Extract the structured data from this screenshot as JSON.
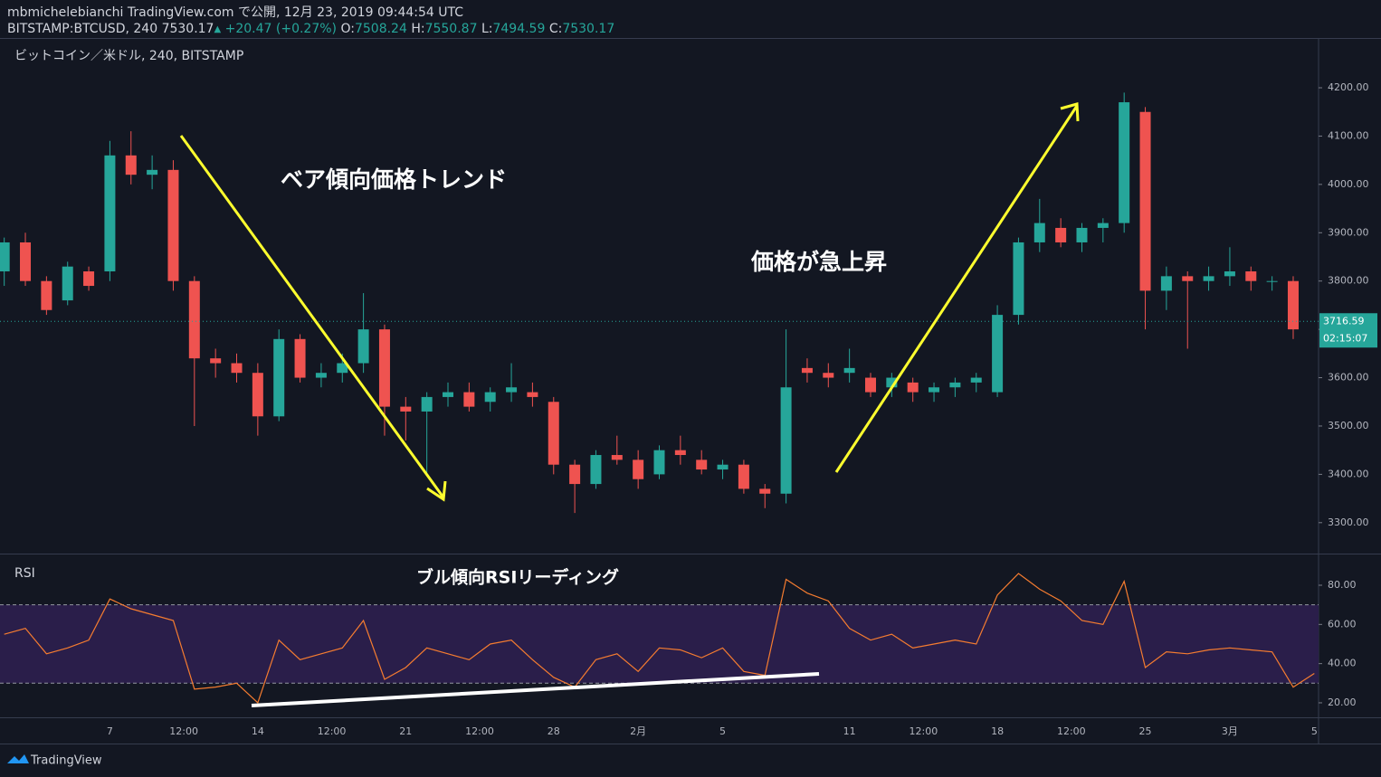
{
  "header": {
    "line1": "mbmichelebianchi TradingView.com で公開, 12月 23, 2019 09:44:54 UTC",
    "symbol": "BITSTAMP:BTCUSD, 240",
    "last": "7530.17",
    "arrow": "▲",
    "change": "+20.47 (+0.27%)",
    "ohlc": [
      {
        "label": "O:",
        "value": "7508.24"
      },
      {
        "label": "H:",
        "value": "7550.87"
      },
      {
        "label": "L:",
        "value": "7494.59"
      },
      {
        "label": "C:",
        "value": "7530.17"
      }
    ]
  },
  "annotations": {
    "bear": "ベア傾向価格トレンド",
    "surge": "価格が急上昇",
    "bull_rsi": "ブル傾向RSIリーディング"
  },
  "brand": "TradingView",
  "chart_data": [
    {
      "type": "candlestick",
      "title": "ビットコイン／米ドル, 240, BITSTAMP",
      "up_color": "#26a69a",
      "down_color": "#ef5350",
      "x": [
        -5,
        -4,
        -3,
        -2,
        -1,
        0,
        1,
        2,
        3,
        4,
        5,
        6,
        7,
        8,
        9,
        10,
        11,
        12,
        13,
        14,
        15,
        16,
        17,
        18,
        19,
        20,
        21,
        22,
        23,
        24,
        25,
        26,
        27,
        28,
        29,
        30,
        31,
        32,
        33,
        34,
        35,
        36,
        37,
        38,
        39,
        40,
        41,
        42,
        43,
        44,
        45,
        46,
        47,
        48,
        49,
        50,
        51,
        52,
        53,
        54,
        55,
        56
      ],
      "open": [
        3820,
        3880,
        3800,
        3760,
        3820,
        3820,
        4060,
        4020,
        4030,
        3800,
        3640,
        3630,
        3610,
        3520,
        3680,
        3600,
        3610,
        3630,
        3700,
        3540,
        3530,
        3560,
        3570,
        3550,
        3570,
        3570,
        3550,
        3420,
        3380,
        3440,
        3430,
        3400,
        3450,
        3430,
        3410,
        3420,
        3370,
        3360,
        3620,
        3610,
        3610,
        3600,
        3580,
        3590,
        3570,
        3580,
        3590,
        3570,
        3730,
        3880,
        3910,
        3880,
        3910,
        3920,
        4150,
        3780,
        3810,
        3800,
        3810,
        3820,
        3800,
        3800
      ],
      "high": [
        3890,
        3900,
        3810,
        3840,
        3830,
        4090,
        4110,
        4060,
        4050,
        3810,
        3660,
        3650,
        3630,
        3700,
        3690,
        3630,
        3650,
        3775,
        3710,
        3560,
        3570,
        3590,
        3590,
        3580,
        3630,
        3590,
        3560,
        3430,
        3450,
        3480,
        3450,
        3460,
        3480,
        3450,
        3430,
        3430,
        3380,
        3700,
        3640,
        3630,
        3660,
        3610,
        3610,
        3600,
        3590,
        3600,
        3610,
        3750,
        3890,
        3970,
        3930,
        3920,
        3930,
        4190,
        4160,
        3830,
        3820,
        3830,
        3870,
        3830,
        3810,
        3810
      ],
      "low": [
        3790,
        3790,
        3730,
        3750,
        3780,
        3800,
        4000,
        3990,
        3780,
        3500,
        3600,
        3590,
        3480,
        3510,
        3590,
        3580,
        3590,
        3610,
        3480,
        3470,
        3400,
        3540,
        3530,
        3530,
        3550,
        3540,
        3400,
        3320,
        3370,
        3420,
        3370,
        3390,
        3420,
        3400,
        3390,
        3360,
        3330,
        3340,
        3590,
        3580,
        3590,
        3560,
        3560,
        3550,
        3550,
        3560,
        3570,
        3560,
        3710,
        3860,
        3870,
        3860,
        3880,
        3900,
        3700,
        3740,
        3660,
        3780,
        3790,
        3780,
        3780,
        3680
      ],
      "close": [
        3880,
        3800,
        3740,
        3830,
        3790,
        4060,
        4020,
        4030,
        3800,
        3640,
        3630,
        3610,
        3520,
        3680,
        3600,
        3610,
        3630,
        3700,
        3540,
        3530,
        3560,
        3570,
        3540,
        3570,
        3580,
        3560,
        3420,
        3380,
        3440,
        3430,
        3390,
        3450,
        3440,
        3410,
        3420,
        3370,
        3360,
        3580,
        3610,
        3600,
        3620,
        3570,
        3600,
        3570,
        3580,
        3590,
        3600,
        3730,
        3880,
        3920,
        3880,
        3910,
        3920,
        4170,
        3780,
        3810,
        3800,
        3810,
        3820,
        3800,
        3800,
        3700
      ],
      "last_price": 3716.59,
      "countdown": "02:15:07",
      "xlim": [
        -5.2,
        57.2
      ],
      "ylim": [
        3236,
        4303
      ],
      "yticks": [
        {
          "value": 3300,
          "label": "3300.00"
        },
        {
          "value": 3400,
          "label": "3400.00"
        },
        {
          "value": 3500,
          "label": "3500.00"
        },
        {
          "value": 3600,
          "label": "3600.00"
        },
        {
          "value": 3700,
          "label": "3700.00"
        },
        {
          "value": 3800,
          "label": "3800.00"
        },
        {
          "value": 3900,
          "label": "3900.00"
        },
        {
          "value": 4000,
          "label": "4000.00"
        },
        {
          "value": 4100,
          "label": "4100.00"
        },
        {
          "value": 4200,
          "label": "4200.00"
        }
      ],
      "xticks": [
        {
          "value": 0,
          "label": "7"
        },
        {
          "value": 3.5,
          "label": "12:00"
        },
        {
          "value": 7,
          "label": "14"
        },
        {
          "value": 10.5,
          "label": "12:00"
        },
        {
          "value": 14,
          "label": "21"
        },
        {
          "value": 17.5,
          "label": "12:00"
        },
        {
          "value": 21,
          "label": "28"
        },
        {
          "value": 25,
          "label": "2月"
        },
        {
          "value": 29,
          "label": "5"
        },
        {
          "value": 35,
          "label": "11"
        },
        {
          "value": 38.5,
          "label": "12:00"
        },
        {
          "value": 42,
          "label": "18"
        },
        {
          "value": 45.5,
          "label": "12:00"
        },
        {
          "value": 49,
          "label": "25"
        },
        {
          "value": 53,
          "label": "3月"
        },
        {
          "value": 57,
          "label": "5"
        }
      ]
    },
    {
      "type": "line",
      "title": "RSI",
      "color": "#f57c30",
      "band": [
        30,
        70
      ],
      "band_color": "#2a1e4a",
      "x": [
        -5,
        -4,
        -3,
        -2,
        -1,
        0,
        1,
        2,
        3,
        4,
        5,
        6,
        7,
        8,
        9,
        10,
        11,
        12,
        13,
        14,
        15,
        16,
        17,
        18,
        19,
        20,
        21,
        22,
        23,
        24,
        25,
        26,
        27,
        28,
        29,
        30,
        31,
        32,
        33,
        34,
        35,
        36,
        37,
        38,
        39,
        40,
        41,
        42,
        43,
        44,
        45,
        46,
        47,
        48,
        49,
        50,
        51,
        52,
        53,
        54,
        55,
        56,
        57
      ],
      "values": [
        55,
        58,
        45,
        48,
        52,
        73,
        68,
        65,
        62,
        27,
        28,
        30,
        20,
        52,
        42,
        45,
        48,
        62,
        32,
        38,
        48,
        45,
        42,
        50,
        52,
        42,
        33,
        28,
        42,
        45,
        36,
        48,
        47,
        43,
        48,
        36,
        34,
        83,
        76,
        72,
        58,
        52,
        55,
        48,
        50,
        52,
        50,
        75,
        86,
        78,
        72,
        62,
        60,
        82,
        38,
        46,
        45,
        47,
        48,
        47,
        46,
        28,
        35
      ],
      "xlim": [
        -5.2,
        57.2
      ],
      "ylim": [
        12.6,
        95.7
      ],
      "yticks": [
        {
          "value": 20,
          "label": "20.00"
        },
        {
          "value": 40,
          "label": "40.00"
        },
        {
          "value": 60,
          "label": "60.00"
        },
        {
          "value": 80,
          "label": "80.00"
        }
      ]
    }
  ]
}
